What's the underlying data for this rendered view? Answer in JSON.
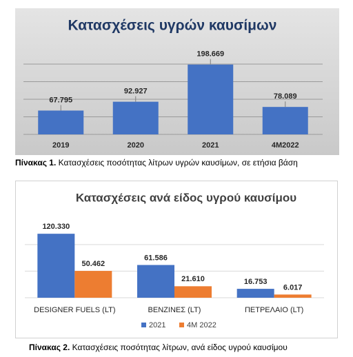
{
  "chart_data": [
    {
      "type": "bar",
      "title": "Κατασχέσεις υγρών καυσίμων",
      "categories": [
        "2019",
        "2020",
        "2021",
        "4M2022"
      ],
      "values": [
        67795,
        92927,
        198669,
        78089
      ],
      "value_labels": [
        "67.795",
        "92.927",
        "198.669",
        "78.089"
      ],
      "color": "#4472c4",
      "ylim": [
        0,
        200000
      ],
      "yticks": [
        0,
        50000,
        100000,
        150000,
        200000
      ],
      "grid": true,
      "caption": {
        "label": "Πίνακας 1.",
        "text": "Κατασχέσεις ποσότητας λίτρων υγρών καυσίμων, σε ετήσια βάση"
      }
    },
    {
      "type": "grouped-bar",
      "title": "Κατασχέσεις ανά είδος υγρού καυσίμου",
      "categories": [
        "DESIGNER FUELS (LT)",
        "ΒΕΝΖΙΝΕΣ (LT)",
        "ΠΕΤΡΕΛΑΙΟ (LT)"
      ],
      "series": [
        {
          "name": "2021",
          "color": "#4472c4",
          "values": [
            120330,
            61586,
            16753
          ],
          "value_labels": [
            "120.330",
            "61.586",
            "16.753"
          ]
        },
        {
          "name": "4M 2022",
          "color": "#ed7d31",
          "values": [
            50462,
            21610,
            6017
          ],
          "value_labels": [
            "50.462",
            "21.610",
            "6.017"
          ]
        }
      ],
      "ylim": [
        0,
        140000
      ],
      "yticks": [
        0,
        50000,
        100000
      ],
      "grid": true,
      "legend": "bottom",
      "caption": {
        "label": "Πίνακας 2.",
        "text": "Κατασχέσεις ποσότητας λίτρων, ανά είδος υγρού καυσίμου"
      }
    }
  ]
}
